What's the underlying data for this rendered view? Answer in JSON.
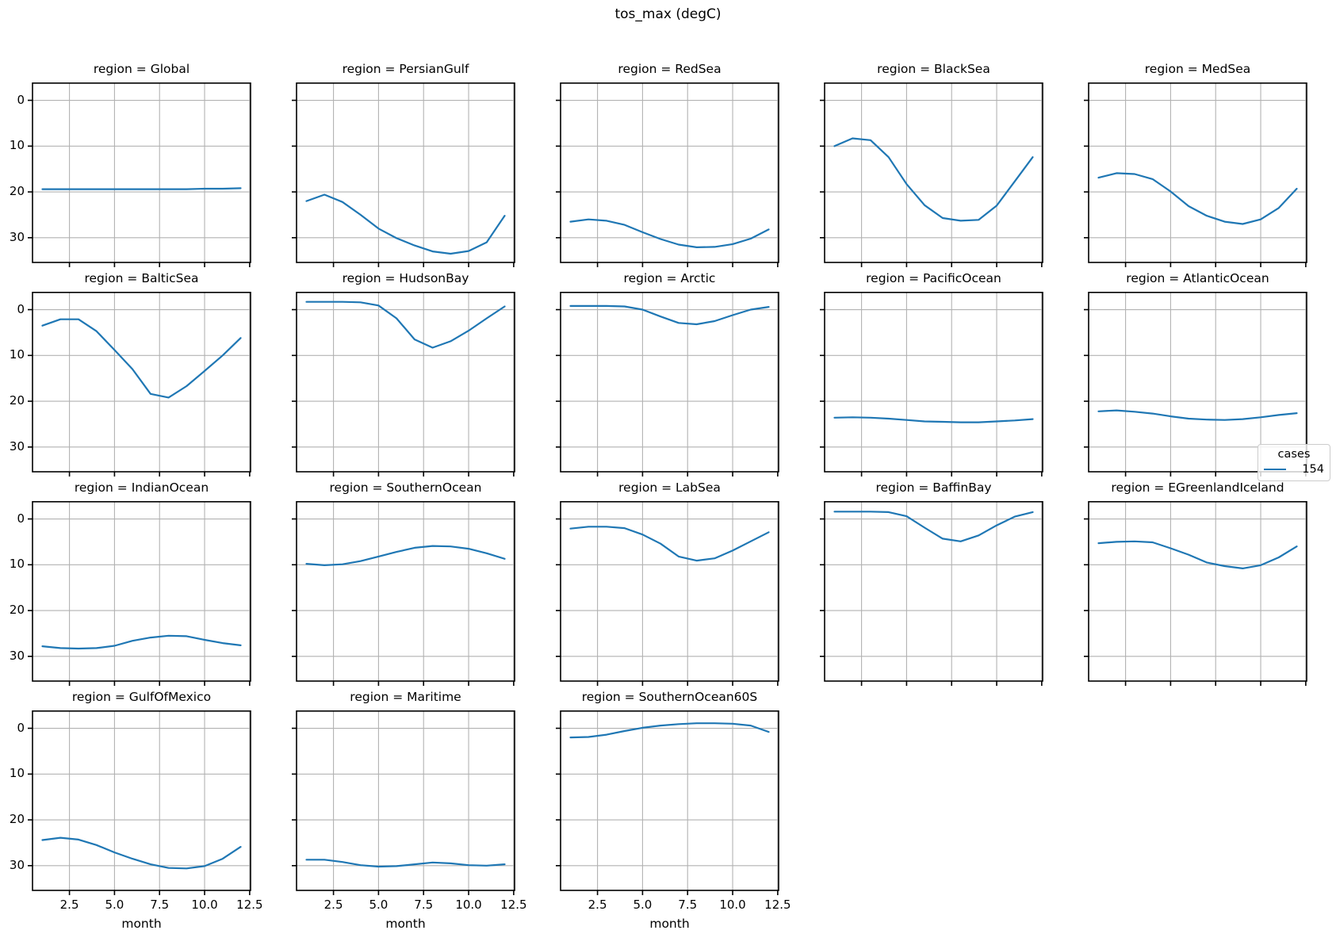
{
  "figure": {
    "title": "tos_max (degC)"
  },
  "legend": {
    "title": "cases",
    "entries": [
      {
        "label": "154",
        "color": "#1f77b4"
      }
    ]
  },
  "style": {
    "line_color": "#1f77b4",
    "grid_color": "#b2b2b2",
    "spine_color": "#000000",
    "background_color": "#ffffff"
  },
  "chart_data": {
    "type": "line",
    "title": "tos_max (degC)",
    "xlabel": "month",
    "ylabel": "",
    "facet_by": "region",
    "facet_title_prefix": "region = ",
    "series_label": "154",
    "x": [
      1,
      2,
      3,
      4,
      5,
      6,
      7,
      8,
      9,
      10,
      11,
      12
    ],
    "x_tick_labels": [
      "2.5",
      "5.0",
      "7.5",
      "10.0",
      "12.5"
    ],
    "x_ticks": [
      2.5,
      5.0,
      7.5,
      10.0,
      12.5
    ],
    "y_tick_labels": [
      "0",
      "10",
      "20",
      "30"
    ],
    "y_ticks": [
      0,
      10,
      20,
      30
    ],
    "xlim": [
      0.45,
      12.55
    ],
    "ylim_top": -3.9,
    "ylim_bottom": 35.4,
    "y_axis_inverted": true,
    "grid": true,
    "legend_position": "right-middle",
    "facets": [
      {
        "region": "Global",
        "values": [
          19.4,
          19.4,
          19.4,
          19.4,
          19.4,
          19.4,
          19.4,
          19.4,
          19.4,
          19.3,
          19.3,
          19.2
        ]
      },
      {
        "region": "PersianGulf",
        "values": [
          22.0,
          20.6,
          22.2,
          25.0,
          28.0,
          30.1,
          31.7,
          33.0,
          33.5,
          32.9,
          31.0,
          25.2
        ]
      },
      {
        "region": "RedSea",
        "values": [
          26.5,
          26.0,
          26.3,
          27.2,
          28.8,
          30.3,
          31.5,
          32.1,
          32.0,
          31.4,
          30.2,
          28.2
        ]
      },
      {
        "region": "BlackSea",
        "values": [
          10.0,
          8.3,
          8.7,
          12.4,
          18.3,
          22.9,
          25.7,
          26.3,
          26.1,
          23.0,
          17.7,
          12.4
        ]
      },
      {
        "region": "MedSea",
        "values": [
          16.9,
          15.9,
          16.1,
          17.2,
          19.9,
          23.1,
          25.2,
          26.5,
          27.0,
          26.0,
          23.5,
          19.3
        ]
      },
      {
        "region": "BalticSea",
        "values": [
          3.5,
          2.1,
          2.1,
          4.7,
          8.8,
          13.0,
          18.4,
          19.2,
          16.7,
          13.4,
          10.0,
          6.2
        ]
      },
      {
        "region": "HudsonBay",
        "values": [
          -1.7,
          -1.7,
          -1.7,
          -1.6,
          -0.9,
          1.9,
          6.5,
          8.3,
          6.9,
          4.6,
          1.9,
          -0.7
        ]
      },
      {
        "region": "Arctic",
        "values": [
          -0.8,
          -0.8,
          -0.8,
          -0.7,
          0.0,
          1.5,
          2.9,
          3.2,
          2.5,
          1.2,
          0.0,
          -0.6
        ]
      },
      {
        "region": "PacificOcean",
        "values": [
          23.6,
          23.5,
          23.6,
          23.8,
          24.1,
          24.4,
          24.5,
          24.6,
          24.6,
          24.4,
          24.2,
          23.9
        ]
      },
      {
        "region": "AtlanticOcean",
        "values": [
          22.2,
          22.0,
          22.3,
          22.7,
          23.3,
          23.8,
          24.0,
          24.1,
          23.9,
          23.5,
          23.0,
          22.6
        ]
      },
      {
        "region": "IndianOcean",
        "values": [
          27.8,
          28.2,
          28.3,
          28.2,
          27.7,
          26.6,
          25.9,
          25.5,
          25.6,
          26.4,
          27.1,
          27.6
        ]
      },
      {
        "region": "SouthernOcean",
        "values": [
          9.8,
          10.1,
          9.9,
          9.2,
          8.2,
          7.2,
          6.3,
          5.9,
          6.0,
          6.5,
          7.5,
          8.7
        ]
      },
      {
        "region": "LabSea",
        "values": [
          2.1,
          1.7,
          1.7,
          2.0,
          3.4,
          5.4,
          8.2,
          9.1,
          8.6,
          6.9,
          4.9,
          2.9
        ]
      },
      {
        "region": "BaffinBay",
        "values": [
          -1.6,
          -1.6,
          -1.6,
          -1.5,
          -0.6,
          1.9,
          4.3,
          4.9,
          3.6,
          1.4,
          -0.5,
          -1.5
        ]
      },
      {
        "region": "EGreenlandIceland",
        "values": [
          5.3,
          5.0,
          4.9,
          5.1,
          6.4,
          7.8,
          9.5,
          10.3,
          10.8,
          10.1,
          8.4,
          6.0
        ]
      },
      {
        "region": "GulfOfMexico",
        "values": [
          24.4,
          23.9,
          24.3,
          25.5,
          27.1,
          28.5,
          29.7,
          30.5,
          30.6,
          30.1,
          28.5,
          25.9
        ]
      },
      {
        "region": "Maritime",
        "values": [
          28.7,
          28.7,
          29.2,
          29.9,
          30.2,
          30.1,
          29.7,
          29.3,
          29.5,
          29.9,
          30.0,
          29.7
        ]
      },
      {
        "region": "SouthernOcean60S",
        "values": [
          2.0,
          1.9,
          1.4,
          0.6,
          -0.1,
          -0.6,
          -0.9,
          -1.1,
          -1.1,
          -1.0,
          -0.6,
          0.8
        ]
      }
    ]
  }
}
